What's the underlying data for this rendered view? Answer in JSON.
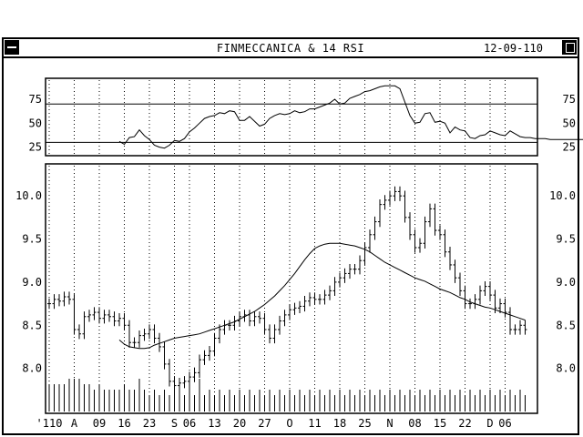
{
  "window": {
    "title": "FINMECCANICA & 14 RSI",
    "date": "12-09-110"
  },
  "chart_data": [
    {
      "type": "line",
      "panel": "rsi",
      "title": "",
      "ylim": [
        18,
        95
      ],
      "yticks": [
        25,
        50,
        75
      ],
      "ytick_labels": [
        "25",
        "50",
        "75"
      ],
      "hlines": [
        30,
        70
      ],
      "x": [
        0,
        1,
        2,
        3,
        4,
        5,
        6,
        7,
        8,
        9,
        10,
        11,
        12,
        13,
        14,
        15,
        16,
        17,
        18,
        19,
        20,
        21,
        22,
        23,
        24,
        25,
        26,
        27,
        28,
        29,
        30,
        31,
        32,
        33,
        34,
        35,
        36,
        37,
        38,
        39,
        40,
        41,
        42,
        43,
        44,
        45,
        46,
        47,
        48,
        49,
        50,
        51,
        52,
        53,
        54,
        55,
        56,
        57,
        58,
        59,
        60,
        61,
        62,
        63,
        64,
        65,
        66,
        67,
        68,
        69,
        70,
        71,
        72,
        73,
        74,
        75,
        76,
        77,
        78,
        79,
        80,
        81,
        82,
        83,
        84,
        85,
        86,
        87,
        88,
        89,
        90,
        91,
        92,
        93,
        94,
        95,
        96,
        97,
        98,
        99,
        100,
        101,
        102,
        103,
        104,
        105,
        106,
        107,
        108,
        109,
        110,
        111,
        112,
        113,
        114,
        115,
        116,
        117,
        118,
        119
      ],
      "values": [
        null,
        null,
        null,
        null,
        null,
        null,
        null,
        null,
        null,
        null,
        null,
        null,
        null,
        null,
        31,
        28,
        35,
        36,
        43,
        37,
        33,
        27,
        25,
        24,
        27,
        32,
        31,
        34,
        41,
        45,
        50,
        55,
        57,
        58,
        61,
        60,
        63,
        62,
        53,
        53,
        57,
        52,
        47,
        49,
        55,
        58,
        60,
        59,
        60,
        63,
        61,
        62,
        65,
        65,
        67,
        69,
        71,
        75,
        70,
        71,
        76,
        78,
        80,
        83,
        84,
        86,
        88,
        89,
        89,
        89,
        86,
        72,
        58,
        50,
        51,
        60,
        61,
        51,
        52,
        50,
        40,
        46,
        43,
        42,
        35,
        34,
        37,
        38,
        42,
        40,
        38,
        37,
        42,
        39,
        36,
        35,
        35,
        34,
        34,
        34,
        33,
        33,
        33,
        33,
        33,
        33,
        33,
        33,
        33,
        33,
        33,
        33,
        33,
        33,
        33,
        33,
        33,
        33,
        33,
        33
      ]
    },
    {
      "type": "ohlc",
      "panel": "price",
      "ylim": [
        7.5,
        10.35
      ],
      "yticks": [
        8.0,
        8.5,
        9.0,
        9.5,
        10.0
      ],
      "ytick_labels": [
        "8.0",
        "8.5",
        "9.0",
        "9.5",
        "10.0"
      ],
      "x_tick_labels": [
        "'110",
        "A",
        "09",
        "16",
        "23",
        "S",
        "06",
        "13",
        "20",
        "27",
        "O",
        "11",
        "18",
        "25",
        "N",
        "08",
        "15",
        "22",
        "D",
        "06"
      ],
      "x_tick_positions": [
        0,
        5,
        10,
        15,
        20,
        25,
        28,
        33,
        38,
        43,
        48,
        53,
        58,
        63,
        68,
        73,
        78,
        83,
        88,
        91
      ],
      "close": [
        8.75,
        8.8,
        8.78,
        8.83,
        8.8,
        8.45,
        8.4,
        8.6,
        8.62,
        8.65,
        8.58,
        8.62,
        8.6,
        8.55,
        8.58,
        8.5,
        8.3,
        8.3,
        8.38,
        8.4,
        8.45,
        8.35,
        8.25,
        8.05,
        7.85,
        7.8,
        7.83,
        7.85,
        7.9,
        7.95,
        8.1,
        8.15,
        8.2,
        8.35,
        8.45,
        8.5,
        8.5,
        8.55,
        8.6,
        8.62,
        8.55,
        8.6,
        8.58,
        8.45,
        8.35,
        8.45,
        8.55,
        8.62,
        8.68,
        8.7,
        8.72,
        8.78,
        8.82,
        8.8,
        8.8,
        8.85,
        8.9,
        9.0,
        9.05,
        9.1,
        9.15,
        9.15,
        9.25,
        9.4,
        9.55,
        9.7,
        9.9,
        9.95,
        10.0,
        10.05,
        10.0,
        9.75,
        9.55,
        9.4,
        9.45,
        9.7,
        9.85,
        9.6,
        9.55,
        9.35,
        9.2,
        9.05,
        8.9,
        8.75,
        8.75,
        8.8,
        8.9,
        8.95,
        8.85,
        8.7,
        8.75,
        8.65,
        8.45,
        8.45,
        8.5,
        8.45
      ],
      "volume": [
        5,
        5,
        5,
        5,
        6,
        6,
        6,
        5,
        5,
        4,
        5,
        4,
        4,
        4,
        4,
        5,
        4,
        4,
        6,
        4,
        3,
        4,
        3,
        4,
        3,
        4,
        5,
        3,
        5,
        3,
        6,
        3,
        4,
        3,
        4,
        3,
        4,
        3,
        4,
        3,
        4,
        3,
        4,
        3,
        4,
        3,
        4,
        3,
        4,
        3,
        4,
        3,
        4,
        3,
        4,
        3,
        4,
        3,
        4,
        3,
        4,
        3,
        4,
        3,
        4,
        3,
        4,
        3,
        4,
        3,
        4,
        3,
        4,
        3,
        4,
        3,
        4,
        3,
        4,
        3,
        4,
        3,
        4,
        3,
        4,
        3,
        4,
        3,
        4,
        3,
        4,
        3,
        4,
        3,
        4,
        3
      ],
      "moving_average": {
        "start_index": 14,
        "values": [
          8.33,
          8.28,
          8.25,
          8.24,
          8.23,
          8.23,
          8.24,
          8.27,
          8.29,
          8.31,
          8.33,
          8.35,
          8.36,
          8.37,
          8.38,
          8.39,
          8.4,
          8.42,
          8.44,
          8.46,
          8.48,
          8.5,
          8.52,
          8.54,
          8.57,
          8.6,
          8.63,
          8.66,
          8.7,
          8.74,
          8.79,
          8.84,
          8.9,
          8.96,
          9.03,
          9.1,
          9.18,
          9.26,
          9.33,
          9.39,
          9.42,
          9.44,
          9.45,
          9.45,
          9.45,
          9.44,
          9.43,
          9.42,
          9.4,
          9.38,
          9.35,
          9.31,
          9.27,
          9.23,
          9.2,
          9.17,
          9.14,
          9.11,
          9.08,
          9.05,
          9.03,
          9.01,
          8.98,
          8.95,
          8.92,
          8.9,
          8.88,
          8.85,
          8.82,
          8.8,
          8.77,
          8.75,
          8.73,
          8.71,
          8.7,
          8.68,
          8.66,
          8.64,
          8.62,
          8.6,
          8.58,
          8.56
        ]
      }
    }
  ]
}
